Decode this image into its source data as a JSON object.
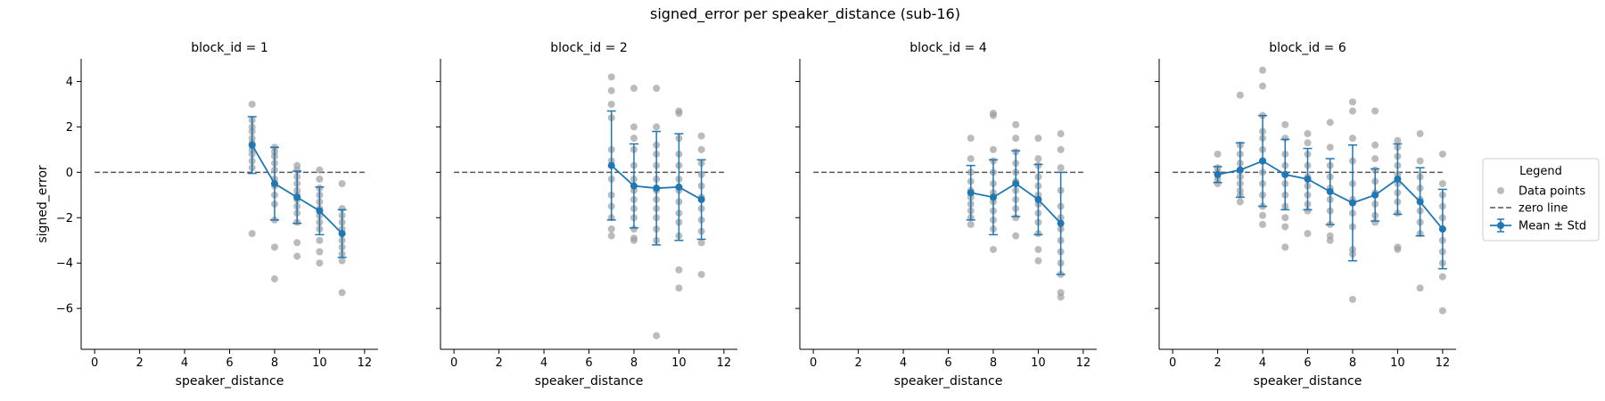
{
  "chart_data": {
    "type": "scatter",
    "title": "signed_error per speaker_distance (sub-16)",
    "xlabel": "speaker_distance",
    "ylabel": "signed_error",
    "xlim": [
      -0.6,
      12.6
    ],
    "ylim": [
      -7.8,
      5.0
    ],
    "xticks": [
      0,
      2,
      4,
      6,
      8,
      10,
      12
    ],
    "yticks": [
      -6,
      -4,
      -2,
      0,
      2,
      4
    ],
    "zero_line": 0,
    "grid": false,
    "legend": {
      "title": "Legend",
      "position": "right",
      "entries": [
        "Data points",
        "zero line",
        "Mean ± Std"
      ]
    },
    "colors": {
      "points": "#9e9e9e",
      "mean": "#1f77b4",
      "zero_line": "#555555"
    },
    "panels": [
      {
        "title": "block_id = 1",
        "points": [
          [
            7,
            3.0
          ],
          [
            7,
            2.3
          ],
          [
            7,
            2.0
          ],
          [
            7,
            1.8
          ],
          [
            7,
            1.5
          ],
          [
            7,
            1.3
          ],
          [
            7,
            1.0
          ],
          [
            7,
            0.8
          ],
          [
            7,
            0.5
          ],
          [
            7,
            0.2
          ],
          [
            7,
            -2.7
          ],
          [
            8,
            1.1
          ],
          [
            8,
            0.9
          ],
          [
            8,
            0.7
          ],
          [
            8,
            0.4
          ],
          [
            8,
            0.1
          ],
          [
            8,
            -0.3
          ],
          [
            8,
            -0.6
          ],
          [
            8,
            -1.0
          ],
          [
            8,
            -1.4
          ],
          [
            8,
            -2.1
          ],
          [
            8,
            -3.3
          ],
          [
            8,
            -4.7
          ],
          [
            9,
            0.3
          ],
          [
            9,
            0.1
          ],
          [
            9,
            -0.2
          ],
          [
            9,
            -0.5
          ],
          [
            9,
            -0.8
          ],
          [
            9,
            -1.0
          ],
          [
            9,
            -1.2
          ],
          [
            9,
            -1.5
          ],
          [
            9,
            -1.8
          ],
          [
            9,
            -2.2
          ],
          [
            9,
            -3.1
          ],
          [
            9,
            -3.7
          ],
          [
            10,
            0.1
          ],
          [
            10,
            -0.3
          ],
          [
            10,
            -0.7
          ],
          [
            10,
            -1.0
          ],
          [
            10,
            -1.3
          ],
          [
            10,
            -1.6
          ],
          [
            10,
            -1.9
          ],
          [
            10,
            -2.2
          ],
          [
            10,
            -2.5
          ],
          [
            10,
            -3.0
          ],
          [
            10,
            -3.5
          ],
          [
            10,
            -4.0
          ],
          [
            11,
            -0.5
          ],
          [
            11,
            -1.6
          ],
          [
            11,
            -1.9
          ],
          [
            11,
            -2.2
          ],
          [
            11,
            -2.5
          ],
          [
            11,
            -2.7
          ],
          [
            11,
            -3.0
          ],
          [
            11,
            -3.3
          ],
          [
            11,
            -3.6
          ],
          [
            11,
            -3.9
          ],
          [
            11,
            -5.3
          ]
        ],
        "mean": [
          [
            7,
            1.2,
            1.25
          ],
          [
            8,
            -0.5,
            1.6
          ],
          [
            9,
            -1.1,
            1.15
          ],
          [
            10,
            -1.7,
            1.05
          ],
          [
            11,
            -2.7,
            1.05
          ]
        ]
      },
      {
        "title": "block_id = 2",
        "points": [
          [
            7,
            4.2
          ],
          [
            7,
            3.6
          ],
          [
            7,
            3.0
          ],
          [
            7,
            2.4
          ],
          [
            7,
            1.0
          ],
          [
            7,
            0.5
          ],
          [
            7,
            -0.3
          ],
          [
            7,
            -1.0
          ],
          [
            7,
            -1.5
          ],
          [
            7,
            -2.0
          ],
          [
            7,
            -2.5
          ],
          [
            7,
            -2.8
          ],
          [
            8,
            3.7
          ],
          [
            8,
            2.0
          ],
          [
            8,
            1.5
          ],
          [
            8,
            1.0
          ],
          [
            8,
            0.3
          ],
          [
            8,
            -0.3
          ],
          [
            8,
            -0.8
          ],
          [
            8,
            -1.2
          ],
          [
            8,
            -1.6
          ],
          [
            8,
            -2.0
          ],
          [
            8,
            -2.5
          ],
          [
            8,
            -2.9
          ],
          [
            8,
            -3.0
          ],
          [
            9,
            3.7
          ],
          [
            9,
            2.0
          ],
          [
            9,
            1.2
          ],
          [
            9,
            0.8
          ],
          [
            9,
            0.3
          ],
          [
            9,
            -0.3
          ],
          [
            9,
            -0.8
          ],
          [
            9,
            -1.2
          ],
          [
            9,
            -1.6
          ],
          [
            9,
            -2.0
          ],
          [
            9,
            -2.5
          ],
          [
            9,
            -3.0
          ],
          [
            9,
            -7.2
          ],
          [
            10,
            2.7
          ],
          [
            10,
            2.6
          ],
          [
            10,
            1.5
          ],
          [
            10,
            0.8
          ],
          [
            10,
            0.3
          ],
          [
            10,
            -0.3
          ],
          [
            10,
            -0.8
          ],
          [
            10,
            -1.3
          ],
          [
            10,
            -1.8
          ],
          [
            10,
            -2.2
          ],
          [
            10,
            -2.8
          ],
          [
            10,
            -4.3
          ],
          [
            10,
            -5.1
          ],
          [
            11,
            1.6
          ],
          [
            11,
            1.0
          ],
          [
            11,
            0.4
          ],
          [
            11,
            -0.1
          ],
          [
            11,
            -0.6
          ],
          [
            11,
            -1.1
          ],
          [
            11,
            -1.6
          ],
          [
            11,
            -2.1
          ],
          [
            11,
            -2.6
          ],
          [
            11,
            -3.1
          ],
          [
            11,
            -4.5
          ]
        ],
        "mean": [
          [
            7,
            0.3,
            2.4
          ],
          [
            8,
            -0.6,
            1.85
          ],
          [
            9,
            -0.7,
            2.5
          ],
          [
            10,
            -0.65,
            2.35
          ],
          [
            11,
            -1.2,
            1.75
          ]
        ]
      },
      {
        "title": "block_id = 4",
        "points": [
          [
            7,
            1.5
          ],
          [
            7,
            0.6
          ],
          [
            7,
            0.0
          ],
          [
            7,
            -0.4
          ],
          [
            7,
            -0.8
          ],
          [
            7,
            -1.1
          ],
          [
            7,
            -1.4
          ],
          [
            7,
            -1.7
          ],
          [
            7,
            -2.0
          ],
          [
            7,
            -2.3
          ],
          [
            8,
            2.6
          ],
          [
            8,
            2.5
          ],
          [
            8,
            1.0
          ],
          [
            8,
            0.5
          ],
          [
            8,
            0.0
          ],
          [
            8,
            -0.5
          ],
          [
            8,
            -0.9
          ],
          [
            8,
            -1.3
          ],
          [
            8,
            -1.7
          ],
          [
            8,
            -2.1
          ],
          [
            8,
            -2.5
          ],
          [
            8,
            -3.4
          ],
          [
            9,
            2.1
          ],
          [
            9,
            1.5
          ],
          [
            9,
            0.9
          ],
          [
            9,
            0.4
          ],
          [
            9,
            0.0
          ],
          [
            9,
            -0.4
          ],
          [
            9,
            -0.8
          ],
          [
            9,
            -1.2
          ],
          [
            9,
            -1.6
          ],
          [
            9,
            -2.0
          ],
          [
            9,
            -2.8
          ],
          [
            10,
            1.5
          ],
          [
            10,
            0.6
          ],
          [
            10,
            0.3
          ],
          [
            10,
            -0.2
          ],
          [
            10,
            -0.6
          ],
          [
            10,
            -1.0
          ],
          [
            10,
            -1.4
          ],
          [
            10,
            -1.8
          ],
          [
            10,
            -2.2
          ],
          [
            10,
            -2.7
          ],
          [
            10,
            -3.4
          ],
          [
            10,
            -3.9
          ],
          [
            11,
            1.7
          ],
          [
            11,
            1.0
          ],
          [
            11,
            0.2
          ],
          [
            11,
            -0.8
          ],
          [
            11,
            -1.5
          ],
          [
            11,
            -2.0
          ],
          [
            11,
            -2.5
          ],
          [
            11,
            -3.0
          ],
          [
            11,
            -3.5
          ],
          [
            11,
            -4.0
          ],
          [
            11,
            -4.5
          ],
          [
            11,
            -5.3
          ],
          [
            11,
            -5.5
          ]
        ],
        "mean": [
          [
            7,
            -0.9,
            1.2
          ],
          [
            8,
            -1.1,
            1.65
          ],
          [
            9,
            -0.5,
            1.45
          ],
          [
            10,
            -1.2,
            1.55
          ],
          [
            11,
            -2.25,
            2.25
          ]
        ]
      },
      {
        "title": "block_id = 6",
        "points": [
          [
            2,
            0.8
          ],
          [
            2,
            0.2
          ],
          [
            2,
            0.0
          ],
          [
            2,
            -0.1
          ],
          [
            2,
            -0.3
          ],
          [
            2,
            -0.5
          ],
          [
            3,
            3.4
          ],
          [
            3,
            1.2
          ],
          [
            3,
            0.8
          ],
          [
            3,
            0.4
          ],
          [
            3,
            0.1
          ],
          [
            3,
            -0.2
          ],
          [
            3,
            -0.5
          ],
          [
            3,
            -0.8
          ],
          [
            3,
            -1.0
          ],
          [
            3,
            -1.3
          ],
          [
            4,
            4.5
          ],
          [
            4,
            3.8
          ],
          [
            4,
            2.5
          ],
          [
            4,
            1.8
          ],
          [
            4,
            1.5
          ],
          [
            4,
            1.0
          ],
          [
            4,
            0.5
          ],
          [
            4,
            0.0
          ],
          [
            4,
            -0.5
          ],
          [
            4,
            -1.0
          ],
          [
            4,
            -1.5
          ],
          [
            4,
            -1.9
          ],
          [
            4,
            -2.3
          ],
          [
            5,
            2.1
          ],
          [
            5,
            1.5
          ],
          [
            5,
            0.8
          ],
          [
            5,
            0.3
          ],
          [
            5,
            -0.1
          ],
          [
            5,
            -0.5
          ],
          [
            5,
            -1.0
          ],
          [
            5,
            -1.5
          ],
          [
            5,
            -2.0
          ],
          [
            5,
            -2.4
          ],
          [
            5,
            -3.3
          ],
          [
            6,
            1.7
          ],
          [
            6,
            1.3
          ],
          [
            6,
            0.8
          ],
          [
            6,
            0.3
          ],
          [
            6,
            -0.2
          ],
          [
            6,
            -0.6
          ],
          [
            6,
            -1.0
          ],
          [
            6,
            -1.4
          ],
          [
            6,
            -1.7
          ],
          [
            6,
            -2.7
          ],
          [
            7,
            2.2
          ],
          [
            7,
            1.1
          ],
          [
            7,
            0.3
          ],
          [
            7,
            -0.2
          ],
          [
            7,
            -0.7
          ],
          [
            7,
            -1.2
          ],
          [
            7,
            -1.7
          ],
          [
            7,
            -2.3
          ],
          [
            7,
            -2.8
          ],
          [
            7,
            -3.0
          ],
          [
            8,
            3.1
          ],
          [
            8,
            2.7
          ],
          [
            8,
            1.5
          ],
          [
            8,
            0.5
          ],
          [
            8,
            -0.5
          ],
          [
            8,
            -1.2
          ],
          [
            8,
            -1.8
          ],
          [
            8,
            -2.4
          ],
          [
            8,
            -3.4
          ],
          [
            8,
            -3.6
          ],
          [
            8,
            -5.6
          ],
          [
            9,
            2.7
          ],
          [
            9,
            1.2
          ],
          [
            9,
            0.6
          ],
          [
            9,
            0.1
          ],
          [
            9,
            -0.4
          ],
          [
            9,
            -0.9
          ],
          [
            9,
            -1.4
          ],
          [
            9,
            -1.9
          ],
          [
            9,
            -2.2
          ],
          [
            10,
            1.4
          ],
          [
            10,
            1.1
          ],
          [
            10,
            0.7
          ],
          [
            10,
            0.3
          ],
          [
            10,
            -0.1
          ],
          [
            10,
            -0.5
          ],
          [
            10,
            -0.9
          ],
          [
            10,
            -1.3
          ],
          [
            10,
            -1.8
          ],
          [
            10,
            -3.3
          ],
          [
            10,
            -3.4
          ],
          [
            11,
            1.7
          ],
          [
            11,
            0.5
          ],
          [
            11,
            -0.2
          ],
          [
            11,
            -0.7
          ],
          [
            11,
            -1.2
          ],
          [
            11,
            -1.7
          ],
          [
            11,
            -2.2
          ],
          [
            11,
            -2.7
          ],
          [
            11,
            -5.1
          ],
          [
            12,
            0.8
          ],
          [
            12,
            -0.5
          ],
          [
            12,
            -1.0
          ],
          [
            12,
            -1.5
          ],
          [
            12,
            -2.0
          ],
          [
            12,
            -2.5
          ],
          [
            12,
            -3.0
          ],
          [
            12,
            -3.5
          ],
          [
            12,
            -4.0
          ],
          [
            12,
            -4.6
          ],
          [
            12,
            -6.1
          ]
        ],
        "mean": [
          [
            2,
            -0.1,
            0.35
          ],
          [
            3,
            0.1,
            1.2
          ],
          [
            4,
            0.5,
            2.0
          ],
          [
            5,
            -0.1,
            1.55
          ],
          [
            6,
            -0.3,
            1.35
          ],
          [
            7,
            -0.85,
            1.45
          ],
          [
            8,
            -1.35,
            2.55
          ],
          [
            9,
            -1.0,
            1.15
          ],
          [
            10,
            -0.3,
            1.55
          ],
          [
            11,
            -1.3,
            1.5
          ],
          [
            12,
            -2.5,
            1.75
          ]
        ]
      }
    ]
  }
}
